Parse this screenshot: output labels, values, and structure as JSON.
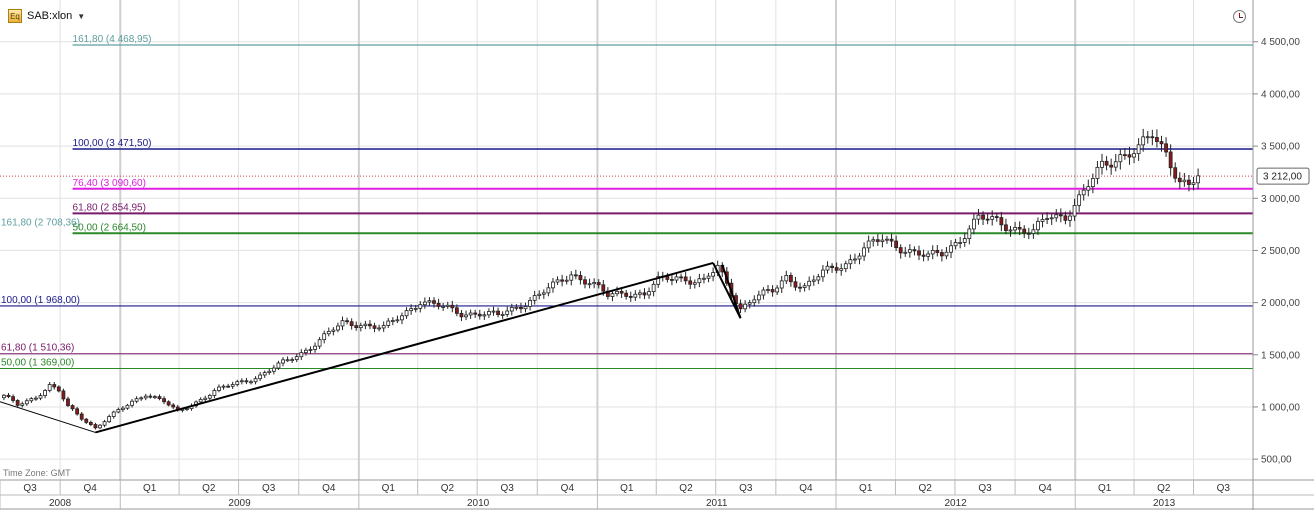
{
  "header": {
    "symbol": "SAB:xlon",
    "eq_badge": "Eq",
    "time_zone": "Time Zone: GMT"
  },
  "price_tag": "3 212,00",
  "colors": {
    "candle_up": "#ffffff",
    "candle_down": "#8b1a1a",
    "wick": "#222222",
    "teal": "#5f9ea0",
    "navy": "#1a1a8c",
    "magenta": "#e020e0",
    "purple": "#7a1a6a",
    "green": "#2a8a2a",
    "price_line": "#d04040",
    "trend": "#000000",
    "grid": "#e2e2e2"
  },
  "chart_data": {
    "type": "candlestick",
    "ylim": [
      300,
      4900
    ],
    "y_ticks": [
      500,
      1000,
      1500,
      2000,
      2500,
      3000,
      3500,
      4000,
      4500
    ],
    "y_tick_labels": [
      "500,00",
      "1 000,00",
      "1 500,00",
      "2 000,00",
      "2 500,00",
      "3 000,00",
      "3 500,00",
      "4 000,00",
      "4 500,00"
    ],
    "x_range": [
      "2008-07-01",
      "2013-09-30"
    ],
    "quarters": [
      {
        "label": "Q3",
        "start": "2008-07-01"
      },
      {
        "label": "Q4",
        "start": "2008-10-01"
      },
      {
        "label": "Q1",
        "start": "2009-01-01"
      },
      {
        "label": "Q2",
        "start": "2009-04-01"
      },
      {
        "label": "Q3",
        "start": "2009-07-01"
      },
      {
        "label": "Q4",
        "start": "2009-10-01"
      },
      {
        "label": "Q1",
        "start": "2010-01-01"
      },
      {
        "label": "Q2",
        "start": "2010-04-01"
      },
      {
        "label": "Q3",
        "start": "2010-07-01"
      },
      {
        "label": "Q4",
        "start": "2010-10-01"
      },
      {
        "label": "Q1",
        "start": "2011-01-01"
      },
      {
        "label": "Q2",
        "start": "2011-04-01"
      },
      {
        "label": "Q3",
        "start": "2011-07-01"
      },
      {
        "label": "Q4",
        "start": "2011-10-01"
      },
      {
        "label": "Q1",
        "start": "2012-01-01"
      },
      {
        "label": "Q2",
        "start": "2012-04-01"
      },
      {
        "label": "Q3",
        "start": "2012-07-01"
      },
      {
        "label": "Q4",
        "start": "2012-10-01"
      },
      {
        "label": "Q1",
        "start": "2013-01-01"
      },
      {
        "label": "Q2",
        "start": "2013-04-01"
      },
      {
        "label": "Q3",
        "start": "2013-07-01"
      }
    ],
    "years": [
      {
        "label": "2008",
        "start": "2008-07-01"
      },
      {
        "label": "2009",
        "start": "2009-01-01"
      },
      {
        "label": "2010",
        "start": "2010-01-01"
      },
      {
        "label": "2011",
        "start": "2011-01-01"
      },
      {
        "label": "2012",
        "start": "2012-01-01"
      },
      {
        "label": "2013",
        "start": "2013-01-01"
      }
    ],
    "fib_levels": [
      {
        "label": "161,80 (4 468,95)",
        "value": 4468.95,
        "color": "#5f9ea0",
        "start": "2008-10-20",
        "width": 1.2
      },
      {
        "label": "100,00 (3 471,50)",
        "value": 3471.5,
        "color": "#1a1a8c",
        "start": "2008-10-20",
        "width": 1.5
      },
      {
        "label": "76,40 (3 090,60)",
        "value": 3090.6,
        "color": "#e020e0",
        "start": "2008-10-20",
        "width": 2
      },
      {
        "label": "61,80 (2 854,95)",
        "value": 2854.95,
        "color": "#7a1a6a",
        "start": "2008-10-20",
        "width": 2
      },
      {
        "label": "161,80 (2 708,36)",
        "value": 2708.36,
        "color": "#5f9ea0",
        "start": "2008-07-01",
        "width": 0,
        "bg": true
      },
      {
        "label": "50,00 (2 664,50)",
        "value": 2664.5,
        "color": "#2a8a2a",
        "start": "2008-10-20",
        "width": 2
      },
      {
        "label": "100,00 (1 968,00)",
        "value": 1968,
        "color": "#1a1a8c",
        "start": "2008-07-01",
        "width": 1.2
      },
      {
        "label": "61,80 (1 510,36)",
        "value": 1510.36,
        "color": "#7a1a6a",
        "start": "2008-07-01",
        "width": 1
      },
      {
        "label": "50,00 (1 369,00)",
        "value": 1369,
        "color": "#2a8a2a",
        "start": "2008-07-01",
        "width": 1
      }
    ],
    "last_price": 3212,
    "trendlines": [
      {
        "points": [
          [
            "2008-07-01",
            1050
          ],
          [
            "2008-11-24",
            756
          ]
        ],
        "width": 1
      },
      {
        "points": [
          [
            "2008-11-24",
            756
          ],
          [
            "2011-06-27",
            2380
          ]
        ],
        "width": 2
      },
      {
        "points": [
          [
            "2011-06-27",
            2380
          ],
          [
            "2011-08-08",
            1850
          ],
          [
            "2011-07-11",
            2362
          ]
        ],
        "width": 2
      }
    ],
    "anchors": [
      [
        "2008-07-07",
        1100
      ],
      [
        "2008-07-28",
        1020
      ],
      [
        "2008-08-25",
        1100
      ],
      [
        "2008-09-15",
        1200
      ],
      [
        "2008-09-29",
        1150
      ],
      [
        "2008-10-13",
        1000
      ],
      [
        "2008-11-24",
        800
      ],
      [
        "2008-12-15",
        900
      ],
      [
        "2009-01-19",
        1050
      ],
      [
        "2009-02-09",
        1130
      ],
      [
        "2009-03-09",
        1050
      ],
      [
        "2009-03-30",
        950
      ],
      [
        "2009-04-27",
        1050
      ],
      [
        "2009-05-25",
        1150
      ],
      [
        "2009-06-29",
        1230
      ],
      [
        "2009-08-03",
        1300
      ],
      [
        "2009-09-07",
        1420
      ],
      [
        "2009-10-05",
        1520
      ],
      [
        "2009-11-02",
        1640
      ],
      [
        "2009-12-07",
        1800
      ],
      [
        "2010-01-04",
        1800
      ],
      [
        "2010-02-08",
        1750
      ],
      [
        "2010-03-08",
        1880
      ],
      [
        "2010-04-05",
        2020
      ],
      [
        "2010-05-10",
        1950
      ],
      [
        "2010-06-07",
        1900
      ],
      [
        "2010-07-05",
        1900
      ],
      [
        "2010-08-02",
        1870
      ],
      [
        "2010-08-30",
        1960
      ],
      [
        "2010-09-27",
        2050
      ],
      [
        "2010-10-25",
        2150
      ],
      [
        "2010-11-22",
        2280
      ],
      [
        "2010-12-20",
        2200
      ],
      [
        "2011-01-17",
        2060
      ],
      [
        "2011-02-14",
        2100
      ],
      [
        "2011-03-14",
        2080
      ],
      [
        "2011-04-04",
        2200
      ],
      [
        "2011-05-02",
        2250
      ],
      [
        "2011-06-13",
        2200
      ],
      [
        "2011-07-04",
        2330
      ],
      [
        "2011-08-08",
        1950
      ],
      [
        "2011-08-29",
        2050
      ],
      [
        "2011-09-26",
        2100
      ],
      [
        "2011-10-17",
        2250
      ],
      [
        "2011-11-14",
        2150
      ],
      [
        "2011-12-12",
        2280
      ],
      [
        "2012-01-16",
        2380
      ],
      [
        "2012-02-13",
        2520
      ],
      [
        "2012-03-12",
        2600
      ],
      [
        "2012-04-16",
        2520
      ],
      [
        "2012-05-21",
        2430
      ],
      [
        "2012-06-11",
        2470
      ],
      [
        "2012-07-09",
        2620
      ],
      [
        "2012-08-06",
        2800
      ],
      [
        "2012-09-03",
        2780
      ],
      [
        "2012-10-01",
        2720
      ],
      [
        "2012-10-29",
        2660
      ],
      [
        "2012-11-19",
        2820
      ],
      [
        "2012-12-17",
        2840
      ],
      [
        "2013-01-14",
        3050
      ],
      [
        "2013-02-11",
        3300
      ],
      [
        "2013-03-11",
        3420
      ],
      [
        "2013-04-08",
        3470
      ],
      [
        "2013-04-29",
        3590
      ],
      [
        "2013-05-20",
        3440
      ],
      [
        "2013-06-10",
        3180
      ],
      [
        "2013-06-24",
        3120
      ],
      [
        "2013-07-08",
        3200
      ]
    ]
  }
}
